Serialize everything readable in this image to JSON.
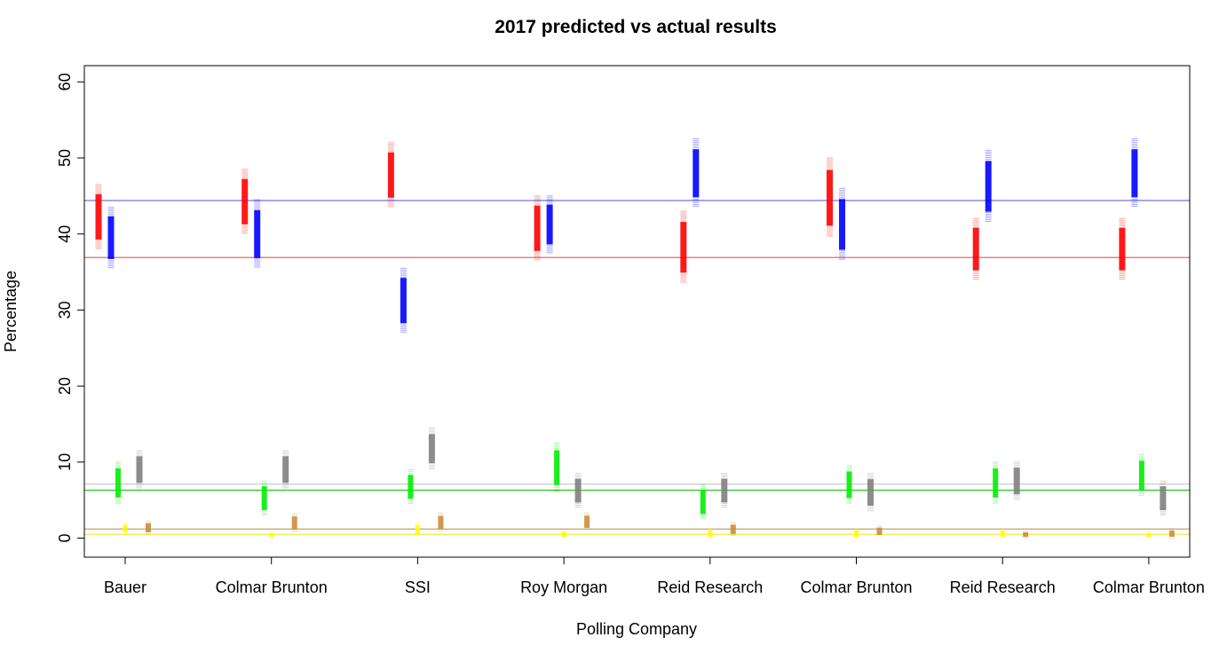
{
  "chart_data": {
    "type": "scatter",
    "title": "2017 predicted vs actual results",
    "xlabel": "Polling Company",
    "ylabel": "Percentage",
    "ylim": [
      -2.5,
      62.5
    ],
    "yticks": [
      0,
      10,
      20,
      30,
      40,
      50,
      60
    ],
    "categories": [
      "Bauer",
      "Colmar Brunton",
      "SSI",
      "Roy Morgan",
      "Reid Research",
      "Colmar Brunton",
      "Reid Research",
      "Colmar Brunton"
    ],
    "grid": false,
    "legend": "none",
    "series": [
      {
        "color": "#ff0000",
        "values": [
          [
            38,
            46.5
          ],
          [
            40,
            48.5
          ],
          [
            43.5,
            52
          ],
          [
            36.5,
            45
          ],
          [
            33.5,
            43
          ],
          [
            39.5,
            50
          ],
          [
            34,
            42
          ],
          [
            34,
            42
          ]
        ]
      },
      {
        "color": "#0000ff",
        "values": [
          [
            35.5,
            43.5
          ],
          [
            35.5,
            44.5
          ],
          [
            27,
            35.5
          ],
          [
            37.5,
            45
          ],
          [
            43.5,
            52.5
          ],
          [
            36.5,
            46
          ],
          [
            41.5,
            51
          ],
          [
            43.5,
            52.5
          ]
        ]
      },
      {
        "color": "#00ee00",
        "values": [
          [
            4.5,
            10
          ],
          [
            3,
            7.5
          ],
          [
            4.5,
            9
          ],
          [
            6,
            12.5
          ],
          [
            2.5,
            7
          ],
          [
            4.5,
            9.5
          ],
          [
            4.5,
            10
          ],
          [
            5.5,
            11
          ]
        ]
      },
      {
        "color": "#808080",
        "values": [
          [
            6.5,
            11.5
          ],
          [
            6.5,
            11.5
          ],
          [
            9,
            14.5
          ],
          [
            4,
            8.5
          ],
          [
            4,
            8.5
          ],
          [
            3.5,
            8.5
          ],
          [
            5,
            10
          ],
          [
            3,
            7.5
          ]
        ]
      },
      {
        "color": "#ffff00",
        "values": [
          [
            0.5,
            2
          ],
          [
            0,
            0.8
          ],
          [
            0.3,
            2
          ],
          [
            0,
            1
          ],
          [
            0,
            1.2
          ],
          [
            0,
            1.2
          ],
          [
            0,
            1.2
          ],
          [
            0,
            0.8
          ]
        ]
      },
      {
        "color": "#cd8c3a",
        "values": [
          [
            0.5,
            2.2
          ],
          [
            0.8,
            3.2
          ],
          [
            0.8,
            3.3
          ],
          [
            1,
            3.3
          ],
          [
            0.3,
            2
          ],
          [
            0.2,
            1.6
          ],
          [
            0,
            0.9
          ],
          [
            0,
            1.2
          ]
        ]
      }
    ],
    "reference_lines": [
      {
        "color": "#7070ee",
        "value": 44.4
      },
      {
        "color": "#ee6666",
        "value": 36.9
      },
      {
        "color": "#cccccc",
        "value": 7.1
      },
      {
        "color": "#22cc22",
        "value": 6.3
      },
      {
        "color": "#c8a064",
        "value": 1.2
      },
      {
        "color": "#eeee44",
        "value": 0.5
      }
    ]
  }
}
